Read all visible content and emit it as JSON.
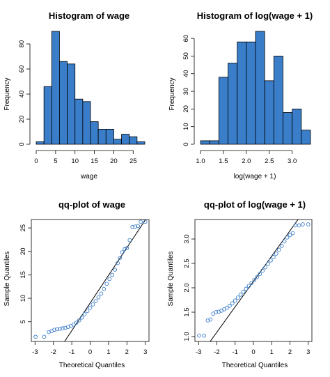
{
  "chart_data": [
    {
      "type": "bar",
      "title": "Histogram of wage",
      "xlabel": "wage",
      "ylabel": "Frequency",
      "bin_edges": [
        0,
        2,
        4,
        6,
        8,
        10,
        12,
        14,
        16,
        18,
        20,
        22,
        24,
        26,
        28
      ],
      "values": [
        2,
        46,
        90,
        66,
        64,
        36,
        34,
        18,
        12,
        12,
        4,
        8,
        6,
        2
      ],
      "xlim": [
        0,
        28
      ],
      "ylim": [
        0,
        90
      ],
      "xticks": [
        0,
        5,
        10,
        15,
        20,
        25
      ],
      "yticks": [
        0,
        20,
        40,
        60,
        80
      ],
      "color": "#3a7dc9"
    },
    {
      "type": "bar",
      "title": "Histogram of log(wage + 1)",
      "xlabel": "log(wage + 1)",
      "ylabel": "Frequency",
      "bin_edges": [
        1.0,
        1.2,
        1.4,
        1.6,
        1.8,
        2.0,
        2.2,
        2.4,
        2.6,
        2.8,
        3.0,
        3.2,
        3.4
      ],
      "values": [
        2,
        2,
        38,
        46,
        58,
        58,
        64,
        36,
        50,
        18,
        20,
        8
      ],
      "xlim": [
        1.0,
        3.4
      ],
      "ylim": [
        0,
        64
      ],
      "xticks": [
        "1.0",
        "1.5",
        "2.0",
        "2.5",
        "3.0"
      ],
      "yticks": [
        0,
        10,
        20,
        30,
        40,
        50,
        60
      ],
      "color": "#3a7dc9"
    },
    {
      "type": "scatter",
      "title": "qq-plot of wage",
      "xlabel": "Theoretical Quantiles",
      "ylabel": "Sample Quantiles",
      "xlim": [
        -3.2,
        3.2
      ],
      "ylim": [
        0.8,
        26.8
      ],
      "xticks": [
        -3,
        -2,
        -1,
        0,
        1,
        2,
        3
      ],
      "yticks": [
        5,
        10,
        15,
        20,
        25
      ],
      "reference_line": {
        "intercept": 9.0,
        "slope": 5.9
      },
      "points": [
        {
          "x": -2.97,
          "y": 1.8
        },
        {
          "x": -2.5,
          "y": 1.8
        },
        {
          "x": -2.25,
          "y": 2.8
        },
        {
          "x": -2.1,
          "y": 3.0
        },
        {
          "x": -1.95,
          "y": 3.3
        },
        {
          "x": -1.8,
          "y": 3.4
        },
        {
          "x": -1.65,
          "y": 3.5
        },
        {
          "x": -1.5,
          "y": 3.6
        },
        {
          "x": -1.35,
          "y": 3.7
        },
        {
          "x": -1.2,
          "y": 3.9
        },
        {
          "x": -1.05,
          "y": 4.1
        },
        {
          "x": -0.9,
          "y": 4.4
        },
        {
          "x": -0.75,
          "y": 4.8
        },
        {
          "x": -0.6,
          "y": 5.3
        },
        {
          "x": -0.45,
          "y": 5.9
        },
        {
          "x": -0.3,
          "y": 6.6
        },
        {
          "x": -0.15,
          "y": 7.3
        },
        {
          "x": 0.0,
          "y": 8.0
        },
        {
          "x": 0.15,
          "y": 8.7
        },
        {
          "x": 0.3,
          "y": 9.4
        },
        {
          "x": 0.45,
          "y": 10.2
        },
        {
          "x": 0.6,
          "y": 11.0
        },
        {
          "x": 0.75,
          "y": 12.0
        },
        {
          "x": 0.9,
          "y": 13.1
        },
        {
          "x": 1.05,
          "y": 14.1
        },
        {
          "x": 1.2,
          "y": 15.0
        },
        {
          "x": 1.35,
          "y": 16.1
        },
        {
          "x": 1.5,
          "y": 17.5
        },
        {
          "x": 1.62,
          "y": 18.6
        },
        {
          "x": 1.75,
          "y": 19.8
        },
        {
          "x": 1.88,
          "y": 20.5
        },
        {
          "x": 2.0,
          "y": 20.7
        },
        {
          "x": 2.15,
          "y": 22.4
        },
        {
          "x": 2.3,
          "y": 25.2
        },
        {
          "x": 2.45,
          "y": 25.3
        },
        {
          "x": 2.6,
          "y": 25.4
        },
        {
          "x": 2.75,
          "y": 26.3
        },
        {
          "x": 3.0,
          "y": 26.3
        }
      ],
      "color": "#3a7dc9"
    },
    {
      "type": "scatter",
      "title": "qq-plot of log(wage + 1)",
      "xlabel": "Theoretical Quantiles",
      "ylabel": "Sample Quantiles",
      "xlim": [
        -3.2,
        3.2
      ],
      "ylim": [
        0.9,
        3.4
      ],
      "xticks": [
        -3,
        -2,
        -1,
        0,
        1,
        2,
        3
      ],
      "yticks": [
        "1.0",
        "1.5",
        "2.0",
        "2.5",
        "3.0"
      ],
      "reference_line": {
        "intercept": 2.13,
        "slope": 0.52
      },
      "points": [
        {
          "x": -2.97,
          "y": 1.02
        },
        {
          "x": -2.7,
          "y": 1.02
        },
        {
          "x": -2.5,
          "y": 1.33
        },
        {
          "x": -2.35,
          "y": 1.35
        },
        {
          "x": -2.2,
          "y": 1.47
        },
        {
          "x": -2.05,
          "y": 1.5
        },
        {
          "x": -1.9,
          "y": 1.51
        },
        {
          "x": -1.75,
          "y": 1.53
        },
        {
          "x": -1.6,
          "y": 1.56
        },
        {
          "x": -1.45,
          "y": 1.59
        },
        {
          "x": -1.3,
          "y": 1.63
        },
        {
          "x": -1.15,
          "y": 1.68
        },
        {
          "x": -1.0,
          "y": 1.74
        },
        {
          "x": -0.85,
          "y": 1.8
        },
        {
          "x": -0.7,
          "y": 1.86
        },
        {
          "x": -0.55,
          "y": 1.92
        },
        {
          "x": -0.4,
          "y": 1.98
        },
        {
          "x": -0.25,
          "y": 2.04
        },
        {
          "x": -0.1,
          "y": 2.1
        },
        {
          "x": 0.05,
          "y": 2.16
        },
        {
          "x": 0.2,
          "y": 2.22
        },
        {
          "x": 0.35,
          "y": 2.28
        },
        {
          "x": 0.5,
          "y": 2.35
        },
        {
          "x": 0.65,
          "y": 2.42
        },
        {
          "x": 0.8,
          "y": 2.49
        },
        {
          "x": 0.95,
          "y": 2.56
        },
        {
          "x": 1.1,
          "y": 2.63
        },
        {
          "x": 1.25,
          "y": 2.7
        },
        {
          "x": 1.4,
          "y": 2.78
        },
        {
          "x": 1.55,
          "y": 2.86
        },
        {
          "x": 1.7,
          "y": 2.95
        },
        {
          "x": 1.85,
          "y": 3.03
        },
        {
          "x": 2.0,
          "y": 3.08
        },
        {
          "x": 2.15,
          "y": 3.12
        },
        {
          "x": 2.3,
          "y": 3.28
        },
        {
          "x": 2.5,
          "y": 3.28
        },
        {
          "x": 2.7,
          "y": 3.3
        },
        {
          "x": 3.0,
          "y": 3.3
        }
      ],
      "color": "#3a7dc9"
    }
  ]
}
